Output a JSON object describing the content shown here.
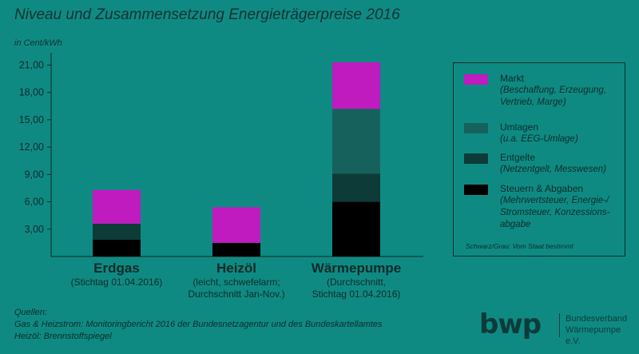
{
  "title": "Niveau und Zusammensetzung Energieträgerpreise 2016",
  "unit_label": "in Cent/kWh",
  "chart_data": {
    "type": "bar",
    "stacked": true,
    "categories": [
      "Erdgas",
      "Heizöl",
      "Wärmepumpe"
    ],
    "category_subtitles": [
      [
        "(Stichtag 01.04.2016)"
      ],
      [
        "(leicht, schwefelarm;",
        "Durchschnitt Jan-Nov.)"
      ],
      [
        "(Durchschnitt,",
        "Stichtag 01.04.2016)"
      ]
    ],
    "y_ticks": [
      "3,00",
      "6,00",
      "9,00",
      "12,00",
      "15,00",
      "18,00",
      "21,00"
    ],
    "y_tick_values": [
      3,
      6,
      9,
      12,
      15,
      18,
      21
    ],
    "ylim": [
      0,
      22
    ],
    "grid": false,
    "legend_position": "right",
    "series": [
      {
        "name": "Steuern & Abgaben",
        "color": "#000000",
        "values": [
          1.85,
          1.5,
          6.0
        ]
      },
      {
        "name": "Entgelte",
        "color": "#0c3b38",
        "values": [
          1.75,
          0,
          3.1
        ]
      },
      {
        "name": "Umlagen",
        "color": "#17615d",
        "values": [
          0,
          0,
          7.1
        ]
      },
      {
        "name": "Markt",
        "color": "#bf1bbf",
        "values": [
          3.7,
          3.9,
          5.1
        ]
      }
    ]
  },
  "legend": {
    "items": [
      {
        "name": "Markt",
        "desc": "(Beschaffung, Erzeugung, Vertrieb, Marge)",
        "color": "#bf1bbf"
      },
      {
        "name": "Umlagen",
        "desc": "(u.a. EEG-Umlage)",
        "color": "#17615d"
      },
      {
        "name": "Entgelte",
        "desc": "(Netzentgelt, Messwesen)",
        "color": "#0c3b38"
      },
      {
        "name": "Steuern & Abgaben",
        "desc": "(Mehrwertsteuer, Energie-/ Stromsteuer, Konzessions-abgabe",
        "color": "#000000"
      }
    ],
    "note": "Schwarz/Grau: Vom Staat bestimmt"
  },
  "sources": {
    "heading": "Quellen:",
    "line1": "Gas & Heizstrom: Monitoringbericht 2016 der Bundesnetzagentur und des Bundeskartellamtes",
    "line2": "Heizöl: Brennstoffspiegel"
  },
  "logo": {
    "mark": "bwp",
    "line1": "Bundesverband",
    "line2": "Wärmepumpe e.V."
  }
}
